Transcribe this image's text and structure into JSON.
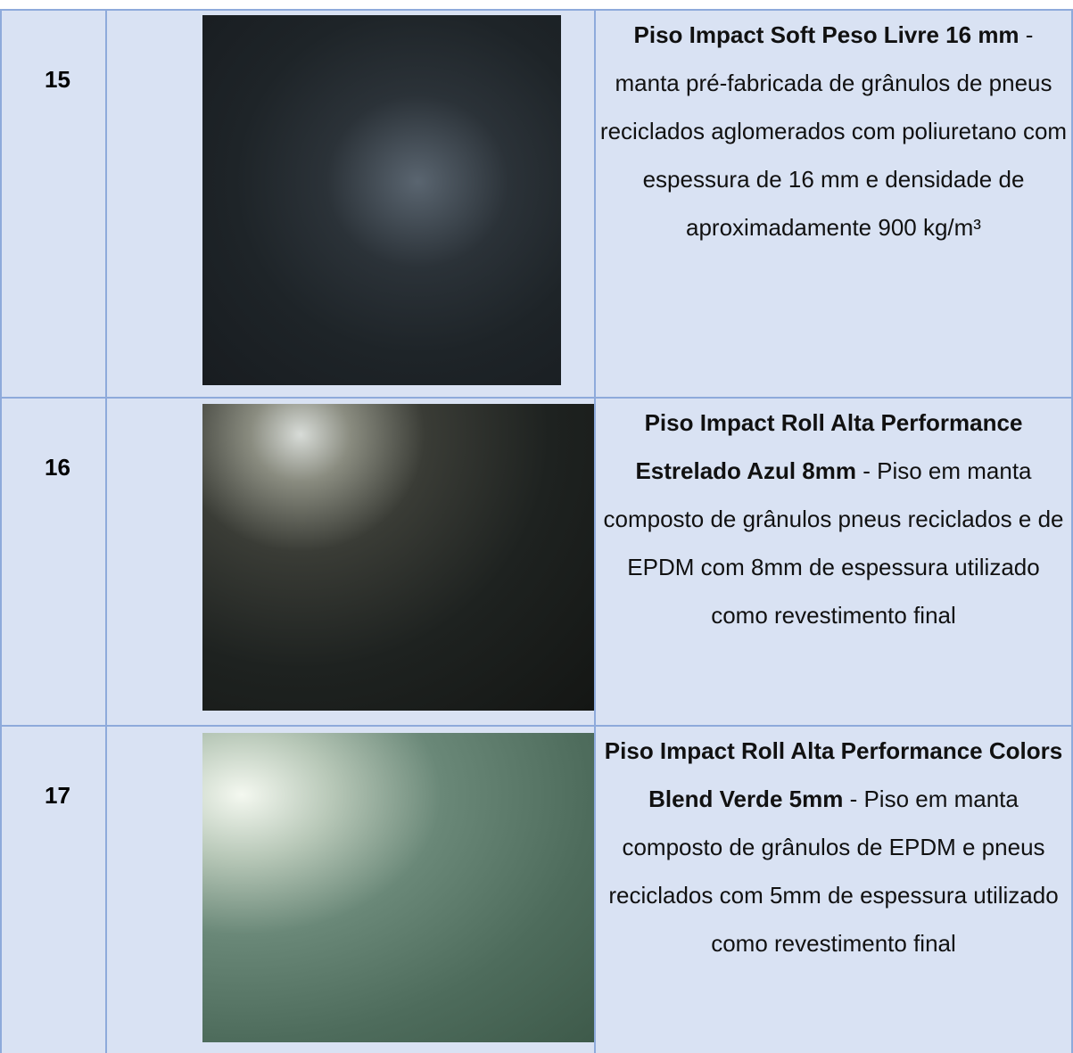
{
  "table": {
    "rows": [
      {
        "number": "15",
        "title": "Piso Impact Soft Peso Livre 16 mm",
        "description": "- manta pré-fabricada de grânulos de pneus reciclados aglomerados com poliuretano com espessura de 16 mm e densidade de aproximadamente 900 kg/m³"
      },
      {
        "number": "16",
        "title": "Piso Impact Roll Alta Performance Estrelado Azul 8mm",
        "description": "- Piso em manta composto de grânulos pneus reciclados e de EPDM com 8mm de espessura utilizado como revestimento final"
      },
      {
        "number": "17",
        "title": "Piso Impact Roll Alta Performance Colors Blend Verde 5mm",
        "description": "- Piso em manta composto de grânulos de EPDM e pneus reciclados com 5mm de espessura utilizado como revestimento final"
      }
    ]
  }
}
